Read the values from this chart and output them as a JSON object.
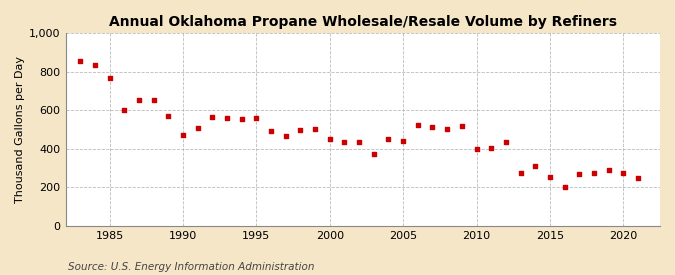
{
  "title": "Annual Oklahoma Propane Wholesale/Resale Volume by Refiners",
  "ylabel": "Thousand Gallons per Day",
  "source": "Source: U.S. Energy Information Administration",
  "background_color": "#f5e6c8",
  "plot_bg_color": "#ffffff",
  "marker_color": "#cc0000",
  "grid_color": "#aaaaaa",
  "years": [
    1983,
    1984,
    1985,
    1986,
    1987,
    1988,
    1989,
    1990,
    1991,
    1992,
    1993,
    1994,
    1995,
    1996,
    1997,
    1998,
    1999,
    2000,
    2001,
    2002,
    2003,
    2004,
    2005,
    2006,
    2007,
    2008,
    2009,
    2010,
    2011,
    2012,
    2013,
    2014,
    2015,
    2016,
    2017,
    2018,
    2019,
    2020,
    2021
  ],
  "values": [
    855,
    835,
    765,
    600,
    650,
    650,
    570,
    470,
    505,
    565,
    560,
    555,
    560,
    490,
    465,
    495,
    500,
    450,
    435,
    435,
    375,
    450,
    440,
    525,
    510,
    500,
    520,
    400,
    405,
    435,
    275,
    310,
    255,
    200,
    270,
    275,
    290,
    275,
    250
  ],
  "ylim": [
    0,
    1000
  ],
  "yticks": [
    0,
    200,
    400,
    600,
    800,
    1000
  ],
  "ytick_labels": [
    "0",
    "200",
    "400",
    "600",
    "800",
    "1,000"
  ],
  "xlim": [
    1982,
    2022.5
  ],
  "xticks": [
    1985,
    1990,
    1995,
    2000,
    2005,
    2010,
    2015,
    2020
  ],
  "title_fontsize": 10,
  "tick_fontsize": 8,
  "ylabel_fontsize": 8,
  "source_fontsize": 7.5
}
